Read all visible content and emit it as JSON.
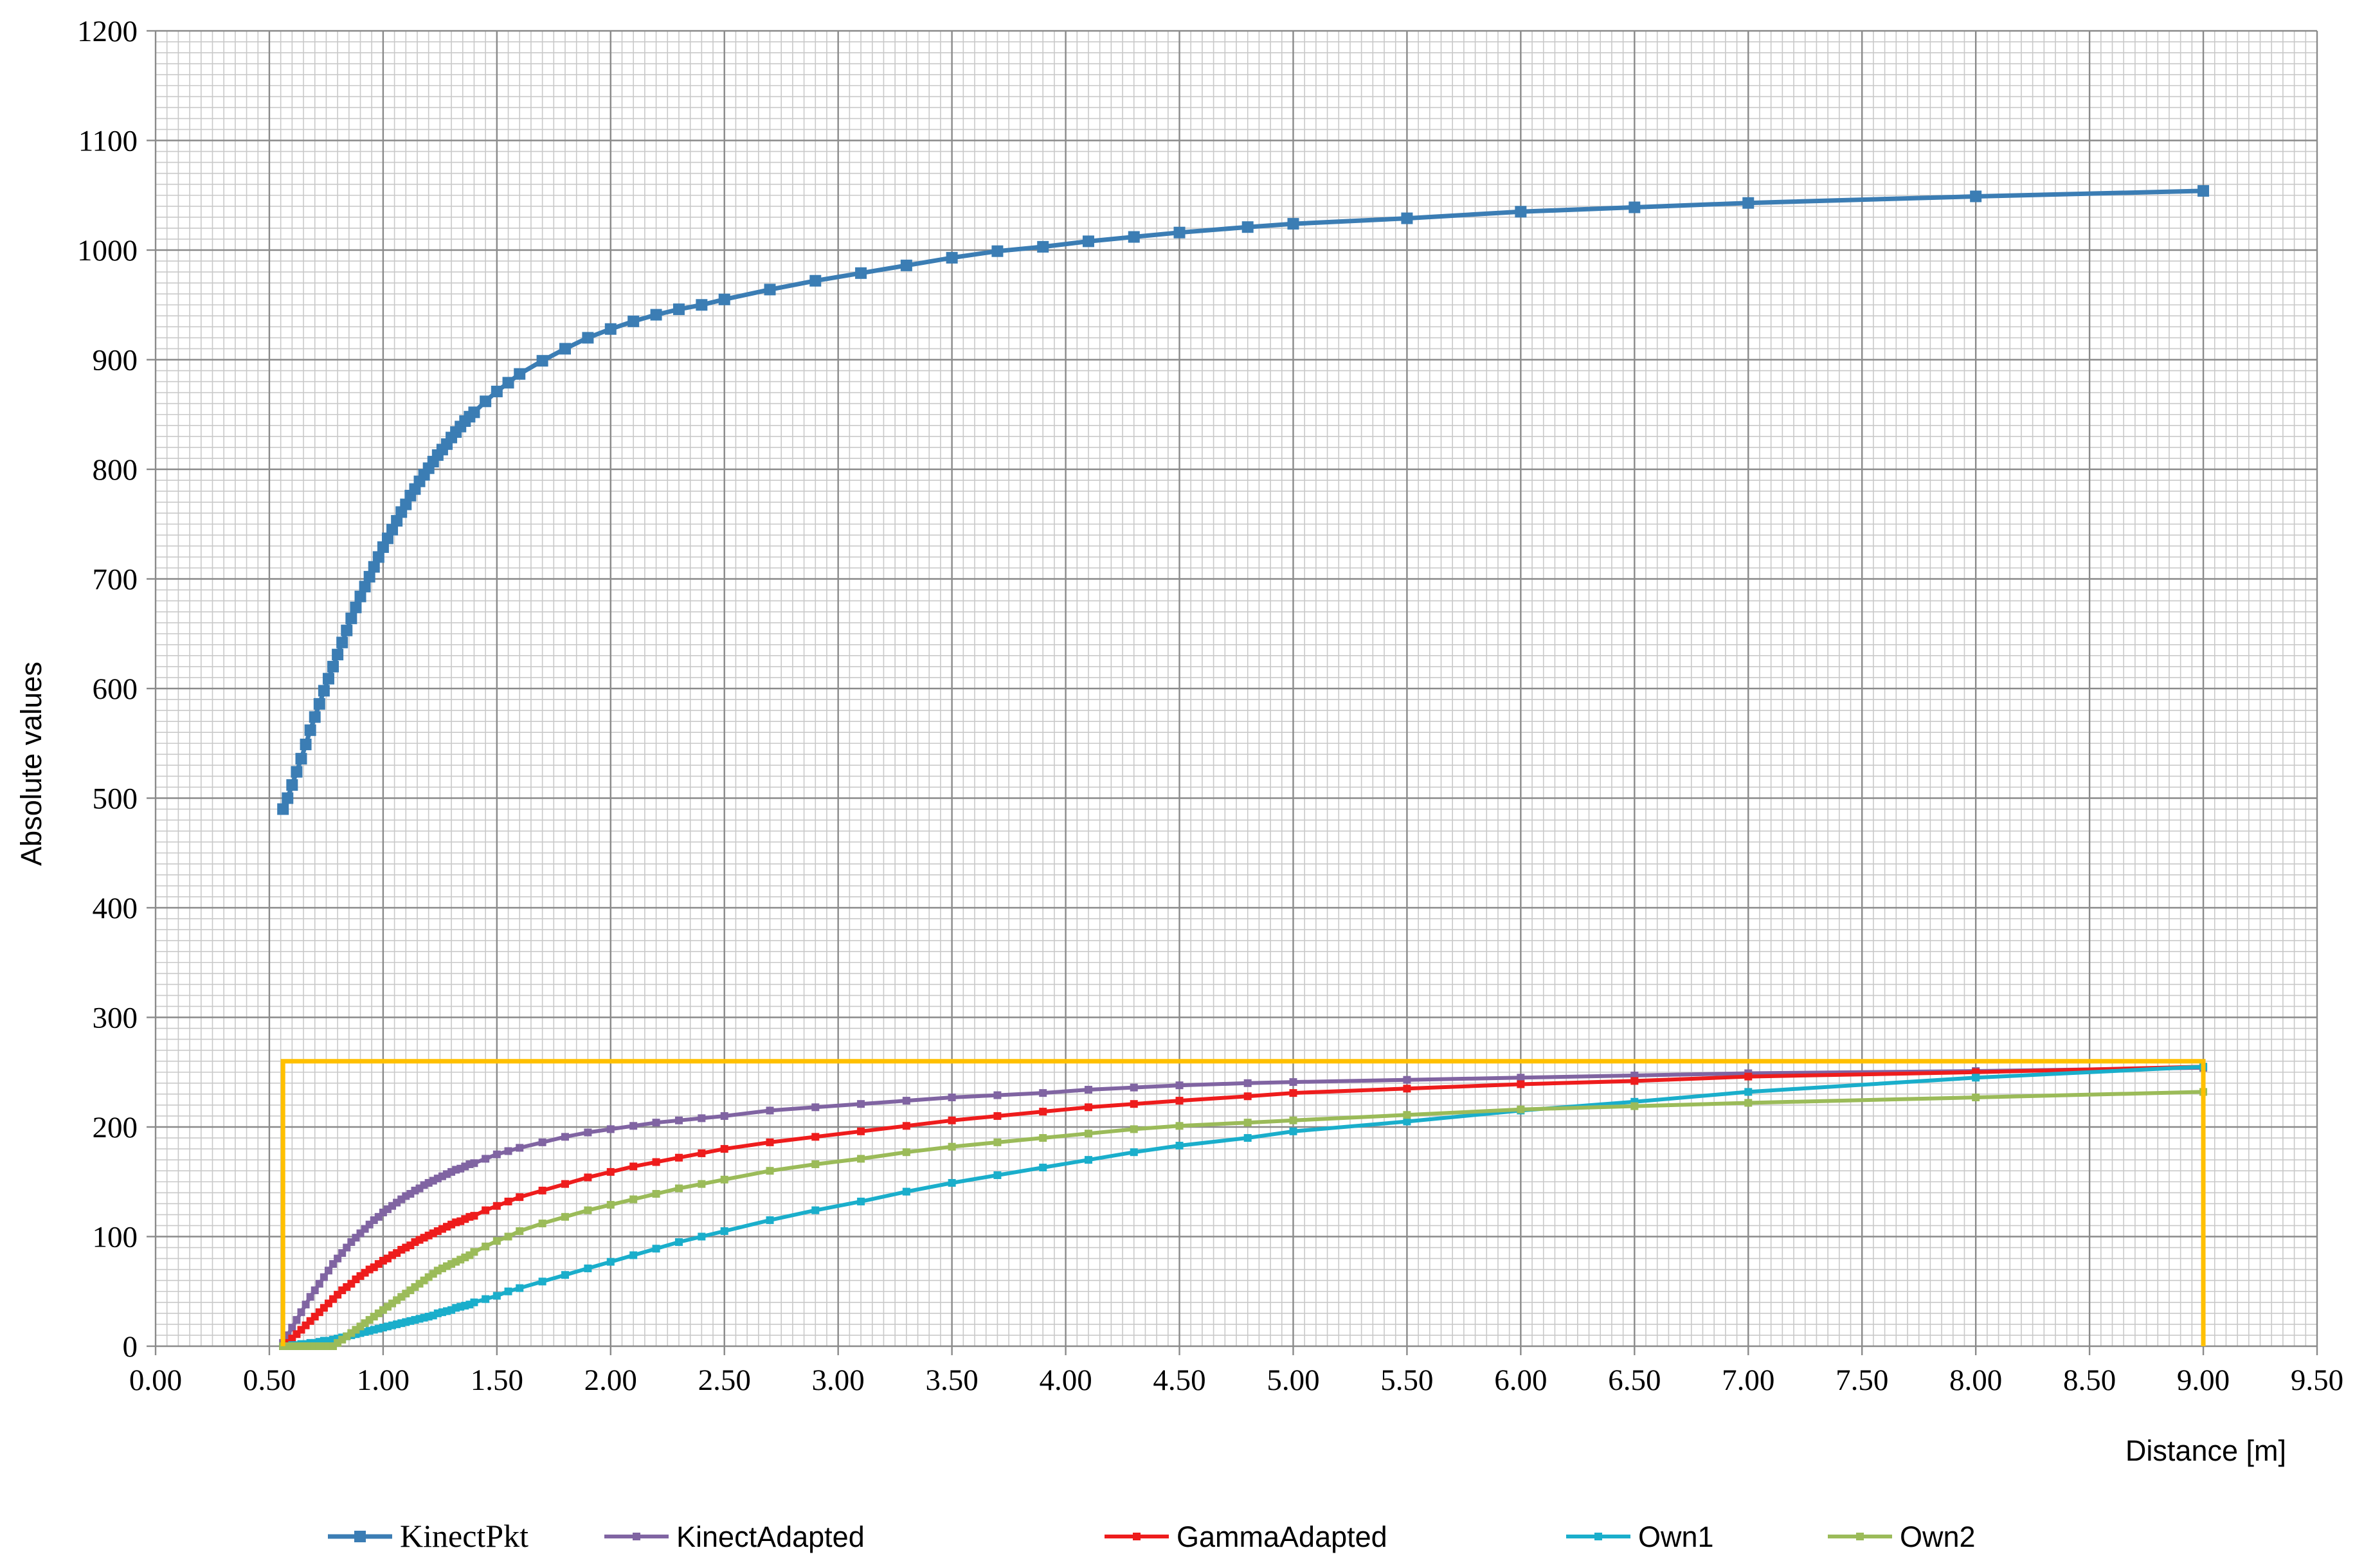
{
  "chart_data": {
    "type": "line",
    "title": "",
    "xlabel": "Distance [m]",
    "ylabel": "Absolute values",
    "xlim": [
      0,
      9.5
    ],
    "ylim": [
      0,
      1200
    ],
    "x_ticks": [
      "0.00",
      "0.50",
      "1.00",
      "1.50",
      "2.00",
      "2.50",
      "3.00",
      "3.50",
      "4.00",
      "4.50",
      "5.00",
      "5.50",
      "6.00",
      "6.50",
      "7.00",
      "7.50",
      "8.00",
      "8.50",
      "9.00",
      "9.50"
    ],
    "y_ticks": [
      "0",
      "100",
      "200",
      "300",
      "400",
      "500",
      "600",
      "700",
      "800",
      "900",
      "1000",
      "1100",
      "1200"
    ],
    "grid": true,
    "legend_position": "bottom",
    "series": [
      {
        "name": "KinectPkt",
        "color": "#3B7DB4",
        "marker": "square",
        "x": [
          0.56,
          0.58,
          0.6,
          0.62,
          0.64,
          0.66,
          0.68,
          0.7,
          0.72,
          0.74,
          0.76,
          0.78,
          0.8,
          0.82,
          0.84,
          0.86,
          0.88,
          0.9,
          0.92,
          0.94,
          0.96,
          0.98,
          1.0,
          1.02,
          1.04,
          1.06,
          1.08,
          1.1,
          1.12,
          1.14,
          1.16,
          1.18,
          1.2,
          1.22,
          1.24,
          1.26,
          1.28,
          1.3,
          1.32,
          1.34,
          1.36,
          1.38,
          1.4,
          1.45,
          1.5,
          1.55,
          1.6,
          1.7,
          1.8,
          1.9,
          2.0,
          2.1,
          2.2,
          2.3,
          2.4,
          2.5,
          2.7,
          2.9,
          3.1,
          3.3,
          3.5,
          3.7,
          3.9,
          4.1,
          4.3,
          4.5,
          4.8,
          5.0,
          5.5,
          6.0,
          6.5,
          7.0,
          8.0,
          9.0
        ],
        "values": [
          490,
          500,
          512,
          524,
          536,
          549,
          562,
          574,
          586,
          598,
          609,
          620,
          631,
          642,
          653,
          664,
          674,
          684,
          693,
          702,
          711,
          720,
          729,
          737,
          745,
          753,
          761,
          768,
          776,
          782,
          789,
          795,
          801,
          807,
          813,
          818,
          823,
          829,
          834,
          839,
          844,
          848,
          852,
          862,
          871,
          879,
          887,
          899,
          910,
          920,
          928,
          935,
          941,
          946,
          950,
          955,
          964,
          972,
          979,
          986,
          993,
          999,
          1003,
          1008,
          1012,
          1016,
          1021,
          1024,
          1029,
          1035,
          1039,
          1043,
          1049,
          1054
        ]
      },
      {
        "name": "KinectAdapted",
        "color": "#8064A2",
        "marker": "dot",
        "x": [
          0.56,
          0.58,
          0.6,
          0.62,
          0.64,
          0.66,
          0.68,
          0.7,
          0.72,
          0.74,
          0.76,
          0.78,
          0.8,
          0.82,
          0.84,
          0.86,
          0.88,
          0.9,
          0.92,
          0.94,
          0.96,
          0.98,
          1.0,
          1.02,
          1.04,
          1.06,
          1.08,
          1.1,
          1.12,
          1.14,
          1.16,
          1.18,
          1.2,
          1.22,
          1.24,
          1.26,
          1.28,
          1.3,
          1.32,
          1.34,
          1.36,
          1.38,
          1.4,
          1.45,
          1.5,
          1.55,
          1.6,
          1.7,
          1.8,
          1.9,
          2.0,
          2.1,
          2.2,
          2.3,
          2.4,
          2.5,
          2.7,
          2.9,
          3.1,
          3.3,
          3.5,
          3.7,
          3.9,
          4.1,
          4.3,
          4.5,
          4.8,
          5.0,
          5.5,
          6.0,
          6.5,
          7.0,
          8.0,
          9.0
        ],
        "values": [
          3,
          10,
          17,
          24,
          31,
          38,
          45,
          51,
          57,
          63,
          69,
          75,
          80,
          85,
          90,
          95,
          99,
          103,
          107,
          111,
          115,
          118,
          122,
          125,
          128,
          131,
          134,
          137,
          139,
          142,
          144,
          147,
          149,
          151,
          153,
          155,
          157,
          159,
          161,
          162,
          164,
          166,
          167,
          171,
          175,
          178,
          181,
          186,
          191,
          195,
          198,
          201,
          204,
          206,
          208,
          210,
          215,
          218,
          221,
          224,
          227,
          229,
          231,
          234,
          236,
          238,
          240,
          241,
          243,
          245,
          247,
          249,
          251,
          254
        ]
      },
      {
        "name": "GammaAdapted",
        "color": "#EE1C1C",
        "marker": "dot",
        "x": [
          0.56,
          0.58,
          0.6,
          0.62,
          0.64,
          0.66,
          0.68,
          0.7,
          0.72,
          0.74,
          0.76,
          0.78,
          0.8,
          0.82,
          0.84,
          0.86,
          0.88,
          0.9,
          0.92,
          0.94,
          0.96,
          0.98,
          1.0,
          1.02,
          1.04,
          1.06,
          1.08,
          1.1,
          1.12,
          1.14,
          1.16,
          1.18,
          1.2,
          1.22,
          1.24,
          1.26,
          1.28,
          1.3,
          1.32,
          1.34,
          1.36,
          1.38,
          1.4,
          1.45,
          1.5,
          1.55,
          1.6,
          1.7,
          1.8,
          1.9,
          2.0,
          2.1,
          2.2,
          2.3,
          2.4,
          2.5,
          2.7,
          2.9,
          3.1,
          3.3,
          3.5,
          3.7,
          3.9,
          4.1,
          4.3,
          4.5,
          4.8,
          5.0,
          5.5,
          6.0,
          6.5,
          7.0,
          8.0,
          9.0
        ],
        "values": [
          0,
          3,
          7,
          11,
          15,
          19,
          23,
          27,
          31,
          35,
          39,
          43,
          47,
          51,
          54,
          57,
          61,
          64,
          67,
          70,
          72,
          75,
          78,
          80,
          83,
          85,
          88,
          90,
          92,
          95,
          97,
          99,
          101,
          103,
          105,
          107,
          109,
          111,
          113,
          114,
          116,
          118,
          119,
          124,
          128,
          132,
          136,
          142,
          148,
          154,
          159,
          164,
          168,
          172,
          176,
          180,
          186,
          191,
          196,
          201,
          206,
          210,
          214,
          218,
          221,
          224,
          228,
          231,
          235,
          239,
          242,
          246,
          250,
          255
        ]
      },
      {
        "name": "Own1",
        "color": "#1AAECB",
        "marker": "dot",
        "x": [
          0.56,
          0.58,
          0.6,
          0.62,
          0.64,
          0.66,
          0.68,
          0.7,
          0.72,
          0.74,
          0.76,
          0.78,
          0.8,
          0.82,
          0.84,
          0.86,
          0.88,
          0.9,
          0.92,
          0.94,
          0.96,
          0.98,
          1.0,
          1.02,
          1.04,
          1.06,
          1.08,
          1.1,
          1.12,
          1.14,
          1.16,
          1.18,
          1.2,
          1.22,
          1.24,
          1.26,
          1.28,
          1.3,
          1.32,
          1.34,
          1.36,
          1.38,
          1.4,
          1.45,
          1.5,
          1.55,
          1.6,
          1.7,
          1.8,
          1.9,
          2.0,
          2.1,
          2.2,
          2.3,
          2.4,
          2.5,
          2.7,
          2.9,
          3.1,
          3.3,
          3.5,
          3.7,
          3.9,
          4.1,
          4.3,
          4.5,
          4.8,
          5.0,
          5.5,
          6.0,
          6.5,
          7.0,
          8.0,
          9.0
        ],
        "values": [
          0,
          0,
          1,
          1,
          2,
          2,
          3,
          3,
          4,
          5,
          5,
          6,
          7,
          8,
          9,
          10,
          11,
          12,
          13,
          14,
          15,
          16,
          17,
          18,
          19,
          20,
          21,
          22,
          23,
          24,
          25,
          26,
          27,
          28,
          30,
          31,
          32,
          33,
          35,
          36,
          37,
          38,
          40,
          43,
          46,
          50,
          53,
          59,
          65,
          71,
          77,
          83,
          89,
          95,
          100,
          105,
          115,
          124,
          132,
          141,
          149,
          156,
          163,
          170,
          177,
          183,
          190,
          196,
          205,
          215,
          223,
          232,
          245,
          255
        ]
      },
      {
        "name": "Own2",
        "color": "#9BBB59",
        "marker": "dot",
        "x": [
          0.56,
          0.58,
          0.6,
          0.62,
          0.64,
          0.66,
          0.68,
          0.7,
          0.72,
          0.74,
          0.76,
          0.78,
          0.8,
          0.82,
          0.84,
          0.86,
          0.88,
          0.9,
          0.92,
          0.94,
          0.96,
          0.98,
          1.0,
          1.02,
          1.04,
          1.06,
          1.08,
          1.1,
          1.12,
          1.14,
          1.16,
          1.18,
          1.2,
          1.22,
          1.24,
          1.26,
          1.28,
          1.3,
          1.32,
          1.34,
          1.36,
          1.38,
          1.4,
          1.45,
          1.5,
          1.55,
          1.6,
          1.7,
          1.8,
          1.9,
          2.0,
          2.1,
          2.2,
          2.3,
          2.4,
          2.5,
          2.7,
          2.9,
          3.1,
          3.3,
          3.5,
          3.7,
          3.9,
          4.1,
          4.3,
          4.5,
          4.8,
          5.0,
          5.5,
          6.0,
          6.5,
          7.0,
          8.0,
          9.0
        ],
        "values": [
          0,
          0,
          0,
          0,
          0,
          0,
          0,
          0,
          0,
          0,
          0,
          0,
          3,
          6,
          9,
          12,
          15,
          18,
          21,
          24,
          27,
          30,
          33,
          36,
          39,
          42,
          45,
          48,
          51,
          54,
          57,
          60,
          63,
          66,
          69,
          71,
          73,
          75,
          77,
          79,
          81,
          83,
          86,
          91,
          96,
          100,
          105,
          112,
          118,
          124,
          129,
          134,
          139,
          144,
          148,
          152,
          160,
          166,
          171,
          177,
          182,
          186,
          190,
          194,
          198,
          201,
          204,
          206,
          211,
          216,
          219,
          222,
          227,
          232
        ]
      }
    ],
    "highlight_box": {
      "color": "#FFC000",
      "x": [
        0.56,
        9.0
      ],
      "y": [
        0,
        260
      ]
    }
  }
}
